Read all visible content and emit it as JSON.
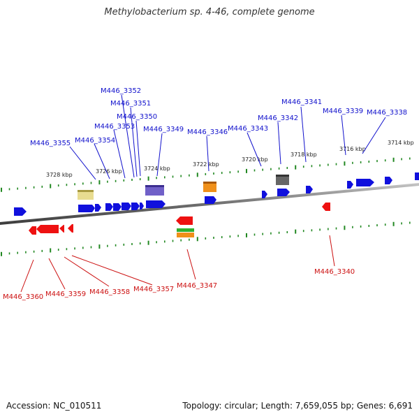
{
  "title": "Methylobacterium sp. 4-46, complete genome",
  "footer": {
    "accession": "Accession: NC_010511",
    "summary": "Topology: circular; Length: 7,659,055 bp; Genes: 6,691"
  },
  "colors": {
    "forward": "#1010dd",
    "reverse": "#ee1111",
    "tick": "#228822",
    "backbone": "#808080"
  },
  "kbp_labels": [
    "3728 kbp",
    "3726 kbp",
    "3724 kbp",
    "3722 kbp",
    "3720 kbp",
    "3718 kbp",
    "3716 kbp",
    "3714 kbp"
  ],
  "forward_labels": [
    "M446_3352",
    "M446_3351",
    "M446_3350",
    "M446_3353",
    "M446_3349",
    "M446_3354",
    "M446_3355",
    "M446_3346",
    "M446_3343",
    "M446_3342",
    "M446_3341",
    "M446_3339",
    "M446_3338"
  ],
  "reverse_labels": [
    "M446_3360",
    "M446_3359",
    "M446_3358",
    "M446_3357",
    "M446_3347",
    "M446_3340"
  ]
}
